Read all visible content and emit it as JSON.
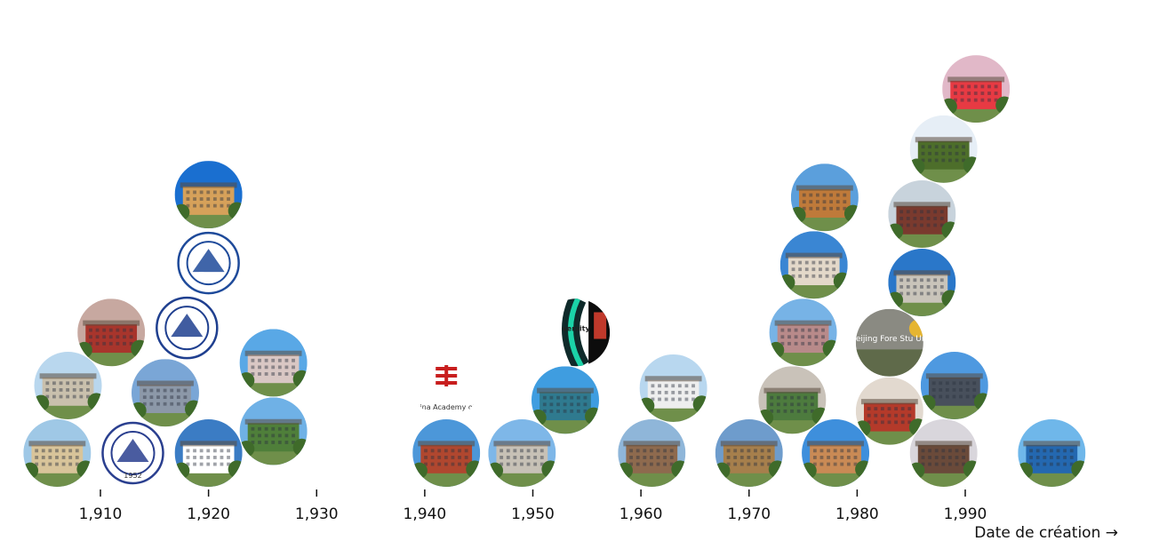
{
  "chart_data": {
    "type": "scatter",
    "layout": "beeswarm",
    "title": "",
    "xlabel": "Date de création →",
    "ylabel": "",
    "xlim": [
      1903,
      2003
    ],
    "x_ticks": [
      1910,
      1920,
      1930,
      1940,
      1950,
      1960,
      1970,
      1980,
      1990
    ],
    "x_tick_labels": [
      "1,910",
      "1,920",
      "1,930",
      "1,940",
      "1,950",
      "1,960",
      "1,970",
      "1,980",
      "1,990"
    ],
    "grid": false,
    "legend": "none",
    "points": [
      {
        "year": 1906,
        "kind": "photo",
        "sky": "#9fc8e6",
        "body": "#d8c49a"
      },
      {
        "year": 1907,
        "kind": "photo",
        "sky": "#b9d7ee",
        "body": "#c9c0ad"
      },
      {
        "year": 1911,
        "kind": "photo",
        "sky": "#c7a8a0",
        "body": "#a8352c"
      },
      {
        "year": 1913,
        "kind": "logo",
        "ink": "#2a3f8f",
        "caption": "1952"
      },
      {
        "year": 1916,
        "kind": "photo",
        "sky": "#7aa6d6",
        "body": "#8c98a8"
      },
      {
        "year": 1918,
        "kind": "logo",
        "ink": "#1f3f8f",
        "caption": ""
      },
      {
        "year": 1920,
        "kind": "photo",
        "sky": "#3b7cc4",
        "body": "#ffffff"
      },
      {
        "year": 1920,
        "kind": "logo",
        "ink": "#1e4a9a",
        "caption": ""
      },
      {
        "year": 1920,
        "kind": "photo",
        "sky": "#1a6fd0",
        "body": "#d6a15a"
      },
      {
        "year": 1926,
        "kind": "photo",
        "sky": "#6fb1e6",
        "body": "#4f7f3a"
      },
      {
        "year": 1926,
        "kind": "photo",
        "sky": "#59a8e6",
        "body": "#d9c7c4"
      },
      {
        "year": 1942,
        "kind": "photo",
        "sky": "#4c97d9",
        "body": "#b0472f"
      },
      {
        "year": 1942,
        "kind": "logo",
        "ink": "#c81e1e",
        "caption": "China Academy of A"
      },
      {
        "year": 1949,
        "kind": "photo",
        "sky": "#7eb7e8",
        "body": "#c7c1b6"
      },
      {
        "year": 1954,
        "kind": "logo",
        "ink": "#1bd3a8",
        "caption": "versity"
      },
      {
        "year": 1953,
        "kind": "photo",
        "sky": "#3f9de0",
        "body": "#2f7a8f"
      },
      {
        "year": 1963,
        "kind": "photo",
        "sky": "#b8d7ef",
        "body": "#eeeeee"
      },
      {
        "year": 1961,
        "kind": "photo",
        "sky": "#8fb6d9",
        "body": "#8e6a4e"
      },
      {
        "year": 1970,
        "kind": "photo",
        "sky": "#6e9ccc",
        "body": "#a67f4c"
      },
      {
        "year": 1975,
        "kind": "photo",
        "sky": "#77b3e6",
        "body": "#b88a8a"
      },
      {
        "year": 1977,
        "kind": "photo",
        "sky": "#5b9fdc",
        "body": "#bf7a3a"
      },
      {
        "year": 1978,
        "kind": "photo",
        "sky": "#3e8fdc",
        "body": "#c98a55"
      },
      {
        "year": 1974,
        "kind": "photo",
        "sky": "#c9c2b9",
        "body": "#4d7b3e"
      },
      {
        "year": 1976,
        "kind": "photo",
        "sky": "#3a86d3",
        "body": "#e3d8c9"
      },
      {
        "year": 1983,
        "kind": "photo",
        "sky": "#e2d9cf",
        "body": "#b43a2a"
      },
      {
        "year": 1986,
        "kind": "photo",
        "sky": "#2a77c9",
        "body": "#c9c4ba"
      },
      {
        "year": 1989,
        "kind": "photo",
        "sky": "#4e99e0",
        "body": "#48505c"
      },
      {
        "year": 1991,
        "kind": "photo",
        "sky": "#e1b8c8",
        "body": "#e73a43"
      },
      {
        "year": 1983,
        "kind": "logo",
        "ink": "#7a6a4a",
        "caption": "Beijing Fore Stu Uni"
      },
      {
        "year": 1988,
        "kind": "photo",
        "sky": "#d9d6dc",
        "body": "#6a4a3a"
      },
      {
        "year": 1986,
        "kind": "photo",
        "sky": "#c8d3dc",
        "body": "#7a3a2e"
      },
      {
        "year": 1988,
        "kind": "photo",
        "sky": "#e6eef6",
        "body": "#4d6e2a"
      },
      {
        "year": 1998,
        "kind": "photo",
        "sky": "#6fb7ea",
        "body": "#2468b0"
      }
    ]
  }
}
